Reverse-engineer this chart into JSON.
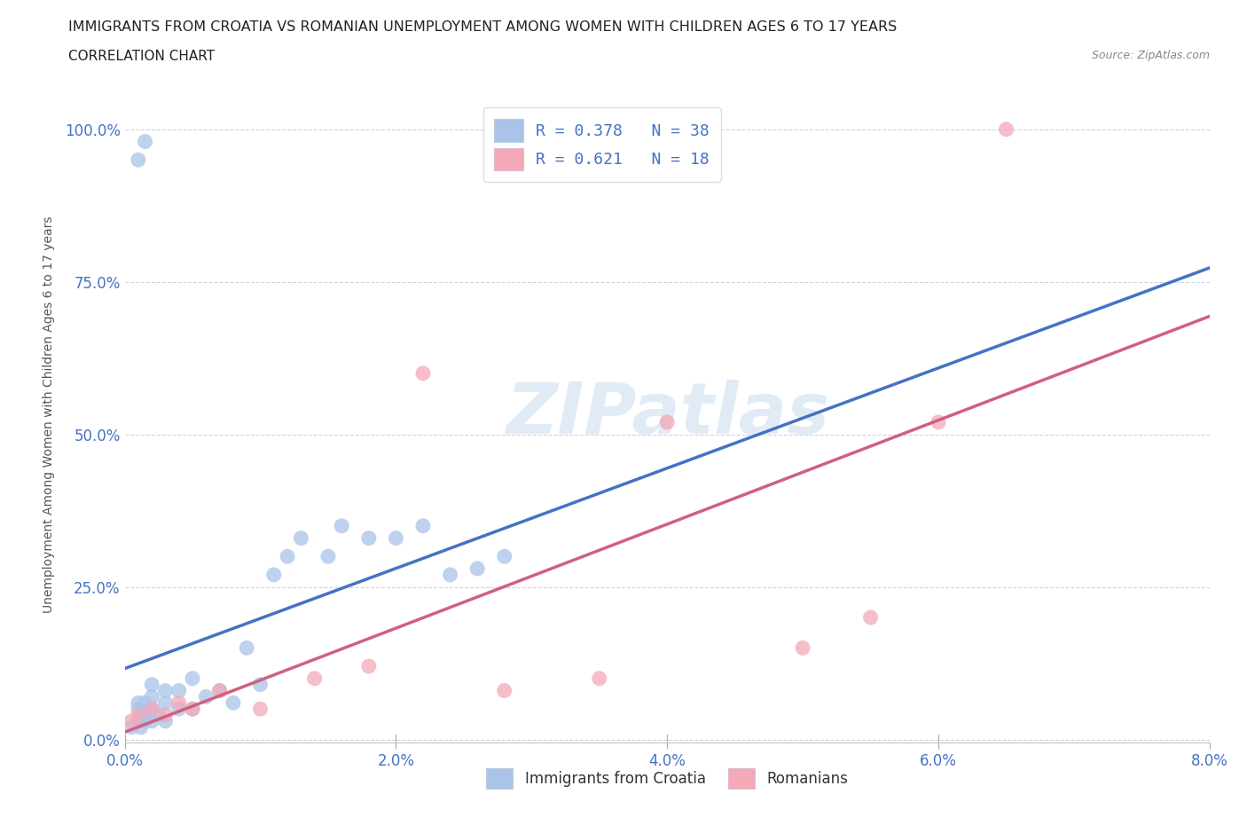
{
  "title": "IMMIGRANTS FROM CROATIA VS ROMANIAN UNEMPLOYMENT AMONG WOMEN WITH CHILDREN AGES 6 TO 17 YEARS",
  "subtitle": "CORRELATION CHART",
  "source": "Source: ZipAtlas.com",
  "ylabel": "Unemployment Among Women with Children Ages 6 to 17 years",
  "xlim": [
    0,
    0.08
  ],
  "ylim": [
    -0.005,
    1.07
  ],
  "xticks": [
    0,
    0.02,
    0.04,
    0.06,
    0.08
  ],
  "xticklabels": [
    "0.0%",
    "2.0%",
    "4.0%",
    "6.0%",
    "8.0%"
  ],
  "yticks": [
    0,
    0.25,
    0.5,
    0.75,
    1.0
  ],
  "yticklabels": [
    "0.0%",
    "25.0%",
    "50.0%",
    "75.0%",
    "100.0%"
  ],
  "watermark": "ZIPatlas",
  "series1_label": "Immigrants from Croatia",
  "series1_R": 0.378,
  "series1_N": 38,
  "series1_color": "#aac4e8",
  "series1_line_color": "#4472c4",
  "series2_label": "Romanians",
  "series2_R": 0.621,
  "series2_N": 18,
  "series2_color": "#f4a8b8",
  "series2_line_color": "#d06080",
  "legend_R_color": "#4472c4",
  "grid_color": "#c8d4e8",
  "background_color": "#ffffff",
  "croatia_x": [
    0.0005,
    0.001,
    0.001,
    0.001,
    0.0012,
    0.0012,
    0.0015,
    0.0015,
    0.002,
    0.002,
    0.002,
    0.002,
    0.0025,
    0.003,
    0.003,
    0.003,
    0.004,
    0.004,
    0.005,
    0.005,
    0.006,
    0.007,
    0.008,
    0.009,
    0.01,
    0.011,
    0.012,
    0.013,
    0.015,
    0.016,
    0.018,
    0.02,
    0.022,
    0.024,
    0.026,
    0.028,
    0.001,
    0.0015
  ],
  "croatia_y": [
    0.02,
    0.03,
    0.05,
    0.06,
    0.02,
    0.04,
    0.03,
    0.06,
    0.03,
    0.05,
    0.07,
    0.09,
    0.04,
    0.03,
    0.06,
    0.08,
    0.05,
    0.08,
    0.05,
    0.1,
    0.07,
    0.08,
    0.06,
    0.15,
    0.09,
    0.27,
    0.3,
    0.33,
    0.3,
    0.35,
    0.33,
    0.33,
    0.35,
    0.27,
    0.28,
    0.3,
    0.95,
    0.98
  ],
  "romanian_x": [
    0.0005,
    0.001,
    0.002,
    0.003,
    0.004,
    0.005,
    0.007,
    0.01,
    0.014,
    0.018,
    0.022,
    0.028,
    0.035,
    0.04,
    0.05,
    0.055,
    0.06,
    0.065
  ],
  "romanian_y": [
    0.03,
    0.04,
    0.05,
    0.04,
    0.06,
    0.05,
    0.08,
    0.05,
    0.1,
    0.12,
    0.6,
    0.08,
    0.1,
    0.52,
    0.15,
    0.2,
    0.52,
    1.0
  ]
}
